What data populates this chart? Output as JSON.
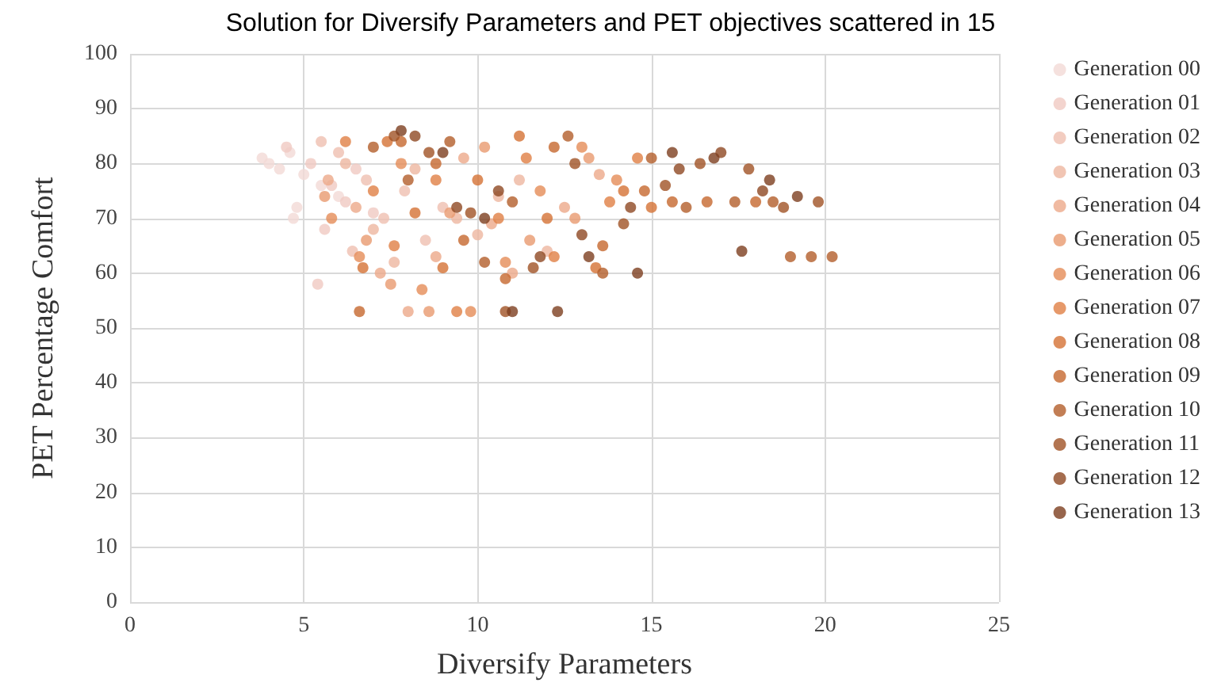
{
  "chart_data": {
    "type": "scatter",
    "title": "Solution for Diversify Parameters and PET objectives scattered in 15",
    "xlabel": "Diversify Parameters",
    "ylabel": "PET Percentage Comfort",
    "xlim": [
      0,
      25
    ],
    "xticks": [
      0,
      5,
      10,
      15,
      20,
      25
    ],
    "ylim": [
      0,
      100
    ],
    "yticks": [
      0,
      10,
      20,
      30,
      40,
      50,
      60,
      70,
      80,
      90,
      100
    ],
    "grid": true,
    "legend": "right",
    "marker": "circle",
    "series": [
      {
        "name": "Generation 00",
        "color": "#f2d9d6",
        "x": [
          3.8,
          4.0,
          4.3,
          4.6,
          4.8,
          5.0,
          4.7,
          5.5,
          6.0
        ],
        "values": [
          81,
          80,
          79,
          82,
          72,
          78,
          70,
          76,
          74
        ]
      },
      {
        "name": "Generation 01",
        "color": "#f0c9c2",
        "x": [
          4.5,
          5.2,
          5.8,
          6.2,
          5.6,
          7.0,
          6.5,
          5.4
        ],
        "values": [
          83,
          80,
          76,
          73,
          68,
          71,
          79,
          58
        ]
      },
      {
        "name": "Generation 02",
        "color": "#efbfb0",
        "x": [
          5.5,
          6.0,
          6.8,
          7.3,
          7.9,
          8.5,
          6.4,
          9.0
        ],
        "values": [
          84,
          82,
          77,
          70,
          75,
          66,
          64,
          72
        ]
      },
      {
        "name": "Generation 03",
        "color": "#eeb6a0",
        "x": [
          6.2,
          7.0,
          7.6,
          8.2,
          9.4,
          10.0,
          10.6,
          11.2,
          12.0
        ],
        "values": [
          80,
          68,
          62,
          79,
          70,
          67,
          74,
          77,
          64
        ]
      },
      {
        "name": "Generation 04",
        "color": "#eca98a",
        "x": [
          5.7,
          6.5,
          7.2,
          8.0,
          8.8,
          9.6,
          10.4,
          11.0,
          12.5,
          13.5
        ],
        "values": [
          77,
          72,
          60,
          53,
          63,
          81,
          69,
          60,
          72,
          78
        ]
      },
      {
        "name": "Generation 05",
        "color": "#e99a6f",
        "x": [
          5.6,
          6.8,
          7.5,
          8.6,
          9.2,
          10.2,
          11.5,
          12.8,
          13.2
        ],
        "values": [
          74,
          66,
          58,
          53,
          71,
          83,
          66,
          70,
          81
        ]
      },
      {
        "name": "Generation 06",
        "color": "#e58c58",
        "x": [
          5.8,
          6.6,
          7.8,
          8.4,
          9.8,
          10.8,
          11.8,
          13.0,
          14.0
        ],
        "values": [
          70,
          63,
          80,
          57,
          53,
          62,
          75,
          83,
          77
        ]
      },
      {
        "name": "Generation 07",
        "color": "#e07f45",
        "x": [
          6.2,
          7.0,
          7.6,
          8.8,
          9.4,
          10.6,
          11.4,
          12.2,
          13.8,
          14.6
        ],
        "values": [
          84,
          75,
          65,
          77,
          53,
          70,
          81,
          63,
          73,
          81
        ]
      },
      {
        "name": "Generation 08",
        "color": "#d47235",
        "x": [
          6.7,
          7.4,
          8.2,
          9.0,
          10.0,
          11.2,
          12.0,
          13.4,
          14.2,
          15.0
        ],
        "values": [
          61,
          84,
          71,
          61,
          77,
          85,
          70,
          61,
          75,
          72
        ]
      },
      {
        "name": "Generation 09",
        "color": "#c5682e",
        "x": [
          6.6,
          7.8,
          8.8,
          9.6,
          10.8,
          12.2,
          13.6,
          14.8,
          15.6,
          16.6,
          18.0
        ],
        "values": [
          53,
          84,
          80,
          66,
          59,
          83,
          65,
          75,
          73,
          73,
          73
        ]
      },
      {
        "name": "Generation 10",
        "color": "#b35e2a",
        "x": [
          7.0,
          8.0,
          9.2,
          10.2,
          11.0,
          12.6,
          13.6,
          15.0,
          16.0,
          17.4,
          18.5,
          19.0,
          19.6,
          20.2
        ],
        "values": [
          83,
          77,
          84,
          62,
          73,
          85,
          60,
          81,
          72,
          73,
          73,
          63,
          63,
          63
        ]
      },
      {
        "name": "Generation 11",
        "color": "#a05226",
        "x": [
          7.6,
          8.6,
          9.8,
          10.8,
          11.6,
          12.8,
          14.2,
          15.4,
          16.4,
          17.8,
          18.8,
          19.8
        ],
        "values": [
          85,
          82,
          71,
          53,
          61,
          80,
          69,
          76,
          80,
          79,
          72,
          73
        ]
      },
      {
        "name": "Generation 12",
        "color": "#8f4823",
        "x": [
          8.2,
          9.4,
          10.6,
          11.8,
          13.0,
          14.4,
          15.8,
          17.0,
          18.2
        ],
        "values": [
          85,
          72,
          75,
          63,
          67,
          72,
          79,
          82,
          75
        ]
      },
      {
        "name": "Generation 13",
        "color": "#7d3e1f",
        "x": [
          7.8,
          9.0,
          10.2,
          11.0,
          12.3,
          13.2,
          14.6,
          15.6,
          16.8,
          17.6,
          18.4,
          19.2
        ],
        "values": [
          86,
          82,
          70,
          53,
          53,
          63,
          60,
          82,
          81,
          64,
          77,
          74
        ]
      }
    ]
  }
}
